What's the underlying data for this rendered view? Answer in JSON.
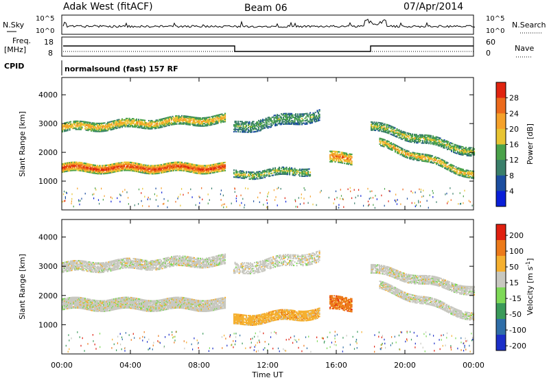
{
  "header": {
    "station": "Adak West (fitACF)",
    "beam": "Beam 06",
    "date": "07/Apr/2014"
  },
  "top_panels": {
    "nsky_label": "N.Sky",
    "nsearch_label": "N.Search",
    "nsky_ticks": [
      "10^5",
      "10^0"
    ],
    "nsearch_ticks": [
      "10^5",
      "10^0"
    ],
    "freq_label_line1": "Freq.",
    "freq_label_line2": "[MHz]",
    "freq_ticks": [
      "18",
      "8"
    ],
    "nave_label": "Nave",
    "nave_ticks": [
      "60",
      "0"
    ],
    "cpid_label": "CPID",
    "cpid_text": "normalsound (fast) 157 RF"
  },
  "chart_data": [
    {
      "type": "heatmap",
      "name": "power",
      "ylabel": "Slant Range [km]",
      "xlabel": "",
      "yticks": [
        "4000",
        "3000",
        "2000",
        "1000"
      ],
      "ylim": [
        0,
        4600
      ],
      "colorbar_label": "Power [dB]",
      "colorbar_ticks": [
        "28",
        "24",
        "20",
        "16",
        "12",
        "8",
        "4"
      ],
      "colors": [
        "#0a1fd8",
        "#1c4ea0",
        "#3a7f6a",
        "#4aa24a",
        "#e8c432",
        "#f5a12a",
        "#ec6a1c",
        "#e02410"
      ],
      "bands": [
        {
          "t0": 0,
          "t1": 9.5,
          "r_start": 1450,
          "r_end": 1450,
          "width": 300,
          "level": 7,
          "fill": 0.9
        },
        {
          "t0": 0,
          "t1": 9.5,
          "r_start": 2850,
          "r_end": 3150,
          "width": 300,
          "level": 5,
          "fill": 0.75
        },
        {
          "t0": 10,
          "t1": 15,
          "r_start": 2850,
          "r_end": 3300,
          "width": 400,
          "level": 3,
          "fill": 0.6
        },
        {
          "t0": 10,
          "t1": 14.5,
          "r_start": 1200,
          "r_end": 1350,
          "width": 250,
          "level": 4,
          "fill": 0.6
        },
        {
          "t0": 15.6,
          "t1": 16.9,
          "r_start": 1800,
          "r_end": 1800,
          "width": 400,
          "level": 6,
          "fill": 0.7
        },
        {
          "t0": 18,
          "t1": 24,
          "r_start": 2900,
          "r_end": 2000,
          "width": 300,
          "level": 4,
          "fill": 0.7
        },
        {
          "t0": 18.5,
          "t1": 24,
          "r_start": 2300,
          "r_end": 1200,
          "width": 250,
          "level": 5,
          "fill": 0.7
        }
      ]
    },
    {
      "type": "heatmap",
      "name": "velocity",
      "ylabel": "Slant Range [km]",
      "xlabel": "Time UT",
      "xticks": [
        "00:00",
        "04:00",
        "08:00",
        "12:00",
        "16:00",
        "20:00",
        "00:00"
      ],
      "xlim": [
        0,
        24
      ],
      "yticks": [
        "4000",
        "3000",
        "2000",
        "1000"
      ],
      "ylim": [
        0,
        4600
      ],
      "colorbar_label": "Velocity [m s^-1]",
      "colorbar_ticks": [
        "200",
        "100",
        "50",
        "15",
        "-15",
        "-50",
        "-100",
        "-200"
      ],
      "colors": [
        "#1c2fc8",
        "#2f6ea8",
        "#3a9a5a",
        "#7ed957",
        "#c8c8c0",
        "#f5b030",
        "#ec7a1a",
        "#e02010"
      ],
      "bands": [
        {
          "t0": 0,
          "t1": 9.5,
          "r_start": 1700,
          "r_end": 1700,
          "width": 400,
          "level": 4,
          "fill": 0.95
        },
        {
          "t0": 0,
          "t1": 9.5,
          "r_start": 2950,
          "r_end": 3200,
          "width": 350,
          "level": 4,
          "fill": 0.8
        },
        {
          "t0": 10,
          "t1": 15,
          "r_start": 2900,
          "r_end": 3350,
          "width": 400,
          "level": 4,
          "fill": 0.5
        },
        {
          "t0": 10,
          "t1": 15,
          "r_start": 1150,
          "r_end": 1400,
          "width": 350,
          "level": 5,
          "fill": 0.85
        },
        {
          "t0": 15.6,
          "t1": 16.9,
          "r_start": 1700,
          "r_end": 1700,
          "width": 450,
          "level": 6,
          "fill": 0.8
        },
        {
          "t0": 18,
          "t1": 24,
          "r_start": 2900,
          "r_end": 2150,
          "width": 300,
          "level": 4,
          "fill": 0.8
        },
        {
          "t0": 18.5,
          "t1": 24,
          "r_start": 2300,
          "r_end": 1250,
          "width": 250,
          "level": 4,
          "fill": 0.8
        }
      ]
    }
  ]
}
